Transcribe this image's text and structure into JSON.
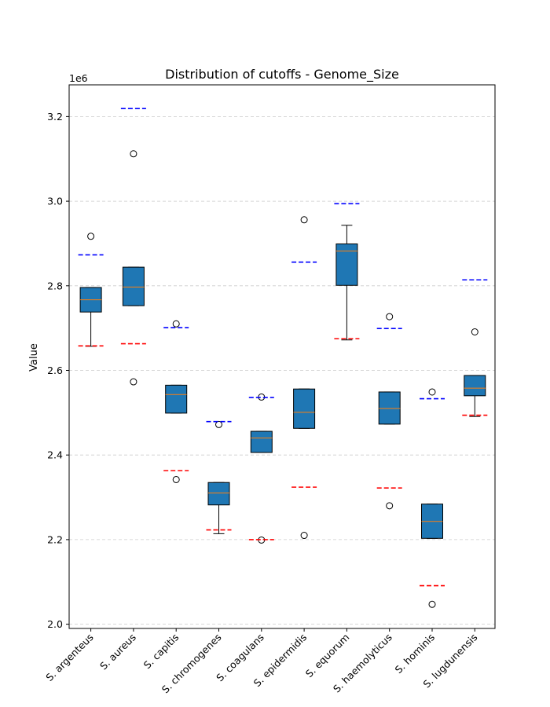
{
  "chart_data": {
    "type": "box",
    "title": "Distribution of cutoffs - Genome_Size",
    "xlabel": "",
    "ylabel": "Value",
    "y_offset_label": "1e6",
    "ylim": [
      1990000,
      3275000
    ],
    "yticks": [
      2000000,
      2200000,
      2400000,
      2600000,
      2800000,
      3000000,
      3200000
    ],
    "ytick_labels": [
      "2.0",
      "2.2",
      "2.4",
      "2.6",
      "2.8",
      "3.0",
      "3.2"
    ],
    "grid": "horizontal dashed",
    "colors": {
      "box_fill": "#1f77b4",
      "median": "#ff7f0e",
      "upper_cutoff": "#0000ff",
      "lower_cutoff": "#ff0000",
      "grid": "#cccccc"
    },
    "categories": [
      "S. argenteus",
      "S. aureus",
      "S. capitis",
      "S. chromogenes",
      "S. coagulans",
      "S. epidermidis",
      "S. equorum",
      "S. haemolyticus",
      "S. hominis",
      "S. lugdunensis"
    ],
    "boxes": [
      {
        "q1": 2738000,
        "median": 2767000,
        "q3": 2796000,
        "whisker_low": 2657000,
        "whisker_high": 2796000,
        "outliers": [
          2917000
        ]
      },
      {
        "q1": 2753000,
        "median": 2797000,
        "q3": 2844000,
        "whisker_low": 2753000,
        "whisker_high": 2844000,
        "outliers": [
          3112000,
          2573000
        ]
      },
      {
        "q1": 2499000,
        "median": 2543000,
        "q3": 2565000,
        "whisker_low": 2499000,
        "whisker_high": 2565000,
        "outliers": [
          2710000,
          2342000
        ]
      },
      {
        "q1": 2282000,
        "median": 2310000,
        "q3": 2335000,
        "whisker_low": 2214000,
        "whisker_high": 2335000,
        "outliers": [
          2472000
        ]
      },
      {
        "q1": 2406000,
        "median": 2440000,
        "q3": 2456000,
        "whisker_low": 2406000,
        "whisker_high": 2456000,
        "outliers": [
          2537000,
          2199000
        ]
      },
      {
        "q1": 2463000,
        "median": 2501000,
        "q3": 2556000,
        "whisker_low": 2463000,
        "whisker_high": 2556000,
        "outliers": [
          2956000,
          2210000
        ]
      },
      {
        "q1": 2801000,
        "median": 2882000,
        "q3": 2899000,
        "whisker_low": 2672000,
        "whisker_high": 2943000,
        "outliers": []
      },
      {
        "q1": 2473000,
        "median": 2510000,
        "q3": 2549000,
        "whisker_low": 2473000,
        "whisker_high": 2549000,
        "outliers": [
          2727000,
          2280000
        ]
      },
      {
        "q1": 2203000,
        "median": 2243000,
        "q3": 2284000,
        "whisker_low": 2203000,
        "whisker_high": 2284000,
        "outliers": [
          2549000,
          2047000
        ]
      },
      {
        "q1": 2540000,
        "median": 2558000,
        "q3": 2588000,
        "whisker_low": 2491000,
        "whisker_high": 2588000,
        "outliers": [
          2691000
        ]
      }
    ],
    "upper_cutoffs": [
      2873000,
      3219000,
      2701000,
      2479000,
      2536000,
      2856000,
      2994000,
      2699000,
      2533000,
      2814000
    ],
    "lower_cutoffs": [
      2658000,
      2663000,
      2363000,
      2223000,
      2200000,
      2324000,
      2675000,
      2322000,
      2091000,
      2494000
    ]
  }
}
